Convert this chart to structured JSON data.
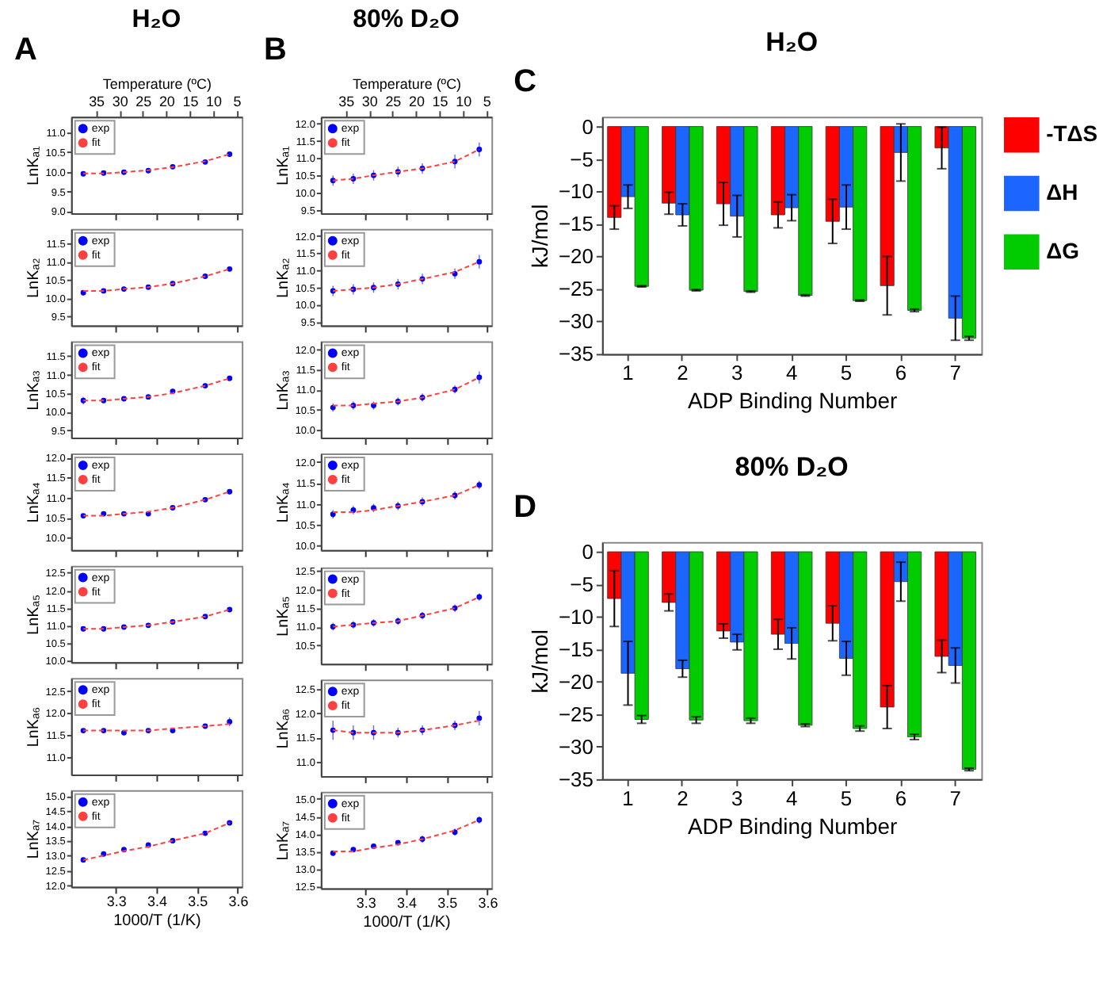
{
  "chart_data": [
    {
      "type": "scatter",
      "title": "H₂O",
      "annotations": [
        "A"
      ],
      "x": [
        3.22,
        3.27,
        3.32,
        3.38,
        3.44,
        3.52,
        3.58
      ],
      "xlim": [
        3.19,
        3.61
      ],
      "xticks": [
        3.3,
        3.4,
        3.5,
        3.6
      ],
      "x2label": "Temperature (ºC)",
      "x2lim": [
        40.3,
        3.9
      ],
      "x2ticks": [
        35,
        30,
        25,
        20,
        15,
        10,
        5
      ],
      "ylim": [
        8.95,
        11.4
      ],
      "yticks": [
        {
          "value": 9,
          "label": "9.0"
        },
        9.5,
        {
          "value": 10,
          "label": "10.0"
        },
        10.5,
        {
          "value": 11,
          "label": "11.0"
        }
      ],
      "ylabel": "LnKₐ₁",
      "legend": "top left",
      "tick_labels": "y",
      "series": [
        {
          "name": "exp",
          "type": "scatter",
          "marker": "circle",
          "color": "#0000ff",
          "values": [
            9.95,
            9.97,
            9.99,
            10.03,
            10.13,
            10.25,
            10.45
          ]
        },
        {
          "name": "fit",
          "type": "line",
          "line_style": "dashed",
          "color": "#ff4040",
          "values": [
            9.96,
            9.96,
            9.99,
            10.04,
            10.12,
            10.27,
            10.45
          ]
        }
      ]
    },
    {
      "type": "scatter",
      "x": [
        3.22,
        3.27,
        3.32,
        3.38,
        3.44,
        3.52,
        3.58
      ],
      "xlim": [
        3.19,
        3.61
      ],
      "xticks": [
        3.3,
        3.4,
        3.5,
        3.6
      ],
      "ylim": [
        9.25,
        11.9
      ],
      "yticks": [
        9.5,
        {
          "value": 10,
          "label": "10.0"
        },
        10.5,
        {
          "value": 11,
          "label": "11.0"
        },
        11.5
      ],
      "ylabel": "LnKₐ₂",
      "legend": "top left",
      "tick_labels": "y",
      "series": [
        {
          "name": "exp",
          "type": "scatter",
          "marker": "circle",
          "color": "#0000ff",
          "values": [
            10.15,
            10.2,
            10.25,
            10.3,
            10.4,
            10.6,
            10.8
          ]
        },
        {
          "name": "fit",
          "type": "line",
          "line_style": "dashed",
          "color": "#ff4040",
          "values": [
            10.2,
            10.2,
            10.25,
            10.3,
            10.4,
            10.6,
            10.8
          ]
        }
      ]
    },
    {
      "type": "scatter",
      "x": [
        3.22,
        3.27,
        3.32,
        3.38,
        3.44,
        3.52,
        3.58
      ],
      "xlim": [
        3.19,
        3.61
      ],
      "xticks": [
        3.3,
        3.4,
        3.5,
        3.6
      ],
      "ylim": [
        9.3,
        11.9
      ],
      "yticks": [
        9.5,
        {
          "value": 10,
          "label": "10.0"
        },
        10.5,
        {
          "value": 11,
          "label": "11.0"
        },
        11.5
      ],
      "ylabel": "LnKₐ₃",
      "legend": "top left",
      "tick_labels": "y",
      "series": [
        {
          "name": "exp",
          "type": "scatter",
          "marker": "circle",
          "color": "#0000ff",
          "errors": [
            0.1,
            0.05,
            null,
            null,
            null,
            null,
            null
          ],
          "values": [
            10.3,
            10.3,
            10.35,
            10.4,
            10.55,
            10.7,
            10.9
          ]
        },
        {
          "name": "fit",
          "type": "line",
          "line_style": "dashed",
          "color": "#ff4040",
          "values": [
            10.3,
            10.3,
            10.35,
            10.4,
            10.5,
            10.7,
            10.9
          ]
        }
      ]
    },
    {
      "type": "scatter",
      "x": [
        3.22,
        3.27,
        3.32,
        3.38,
        3.44,
        3.52,
        3.58
      ],
      "xlim": [
        3.19,
        3.61
      ],
      "xticks": [
        3.3,
        3.4,
        3.5,
        3.6
      ],
      "ylim": [
        9.7,
        12.1
      ],
      "yticks": [
        {
          "value": 10,
          "label": "10.0"
        },
        10.5,
        {
          "value": 11,
          "label": "11.0"
        },
        11.5,
        {
          "value": 12,
          "label": "12.0"
        }
      ],
      "ylabel": "LnKₐ₄",
      "legend": "top left",
      "tick_labels": "y",
      "series": [
        {
          "name": "exp",
          "type": "scatter",
          "marker": "circle",
          "color": "#0000ff",
          "values": [
            10.55,
            10.6,
            10.6,
            10.6,
            10.75,
            10.95,
            11.15
          ]
        },
        {
          "name": "fit",
          "type": "line",
          "line_style": "dashed",
          "color": "#ff4040",
          "values": [
            10.55,
            10.55,
            10.6,
            10.65,
            10.75,
            10.95,
            11.15
          ]
        }
      ]
    },
    {
      "type": "scatter",
      "x": [
        3.22,
        3.27,
        3.32,
        3.38,
        3.44,
        3.52,
        3.58
      ],
      "xlim": [
        3.19,
        3.61
      ],
      "xticks": [
        3.3,
        3.4,
        3.5,
        3.6
      ],
      "ylim": [
        9.95,
        12.7
      ],
      "yticks": [
        {
          "value": 10,
          "label": "10.0"
        },
        10.5,
        {
          "value": 11,
          "label": "11.0"
        },
        11.5,
        {
          "value": 12,
          "label": "12.0"
        },
        12.5
      ],
      "ylabel": "LnKₐ₅",
      "legend": "top left",
      "tick_labels": "y",
      "series": [
        {
          "name": "exp",
          "type": "scatter",
          "marker": "circle",
          "color": "#0000ff",
          "values": [
            10.9,
            10.9,
            10.95,
            11.0,
            11.1,
            11.25,
            11.45
          ]
        },
        {
          "name": "fit",
          "type": "line",
          "line_style": "dashed",
          "color": "#ff4040",
          "values": [
            10.9,
            10.9,
            10.95,
            11.0,
            11.1,
            11.25,
            11.45
          ]
        }
      ]
    },
    {
      "type": "scatter",
      "x": [
        3.22,
        3.27,
        3.32,
        3.38,
        3.44,
        3.52,
        3.58
      ],
      "xlim": [
        3.19,
        3.61
      ],
      "xticks": [
        3.3,
        3.4,
        3.5,
        3.6
      ],
      "ylim": [
        10.6,
        12.8
      ],
      "yticks": [
        {
          "value": 11,
          "label": "11.0"
        },
        11.5,
        {
          "value": 12,
          "label": "12.0"
        },
        12.5
      ],
      "ylabel": "LnKₐ₆",
      "legend": "top left",
      "tick_labels": "y",
      "series": [
        {
          "name": "exp",
          "type": "scatter",
          "marker": "circle",
          "color": "#0000ff",
          "errors": [
            null,
            null,
            null,
            null,
            null,
            null,
            0.1
          ],
          "values": [
            11.6,
            11.6,
            11.55,
            11.6,
            11.6,
            11.7,
            11.8
          ]
        },
        {
          "name": "fit",
          "type": "line",
          "line_style": "dashed",
          "color": "#ff4040",
          "values": [
            11.6,
            11.6,
            11.6,
            11.6,
            11.65,
            11.7,
            11.75
          ]
        }
      ]
    },
    {
      "type": "scatter",
      "x": [
        3.22,
        3.27,
        3.32,
        3.38,
        3.44,
        3.52,
        3.58
      ],
      "xlim": [
        3.19,
        3.61
      ],
      "xticks": [
        3.3,
        3.4,
        3.5,
        3.6
      ],
      "xlabel": "1000/T (1/K)",
      "ylim": [
        11.95,
        15.2
      ],
      "yticks": [
        {
          "value": 12,
          "label": "12.0"
        },
        12.5,
        {
          "value": 13,
          "label": "13.0"
        },
        13.5,
        {
          "value": 14,
          "label": "14.0"
        },
        14.5,
        {
          "value": 15,
          "label": "15.0"
        }
      ],
      "ylabel": "LnKₐ₇",
      "legend": "top left",
      "series": [
        {
          "name": "exp",
          "type": "scatter",
          "marker": "circle",
          "color": "#0000ff",
          "values": [
            12.85,
            13.05,
            13.2,
            13.35,
            13.5,
            13.75,
            14.1
          ]
        },
        {
          "name": "fit",
          "type": "line",
          "line_style": "dashed",
          "color": "#ff4040",
          "values": [
            12.85,
            13.0,
            13.15,
            13.3,
            13.5,
            13.75,
            14.1
          ]
        }
      ]
    },
    {
      "type": "scatter",
      "title": "80% D₂O",
      "annotations": [
        "B"
      ],
      "x": [
        3.22,
        3.27,
        3.32,
        3.38,
        3.44,
        3.52,
        3.58
      ],
      "xlim": [
        3.19,
        3.61
      ],
      "xticks": [
        3.3,
        3.4,
        3.5,
        3.6
      ],
      "x2label": "Temperature (ºC)",
      "x2lim": [
        40.3,
        3.9
      ],
      "x2ticks": [
        35,
        30,
        25,
        20,
        15,
        10,
        5
      ],
      "ylim": [
        9.4,
        12.2
      ],
      "yticks": [
        9.5,
        {
          "value": 10,
          "label": "10.0"
        },
        10.5,
        {
          "value": 11,
          "label": "11.0"
        },
        11.5,
        {
          "value": 12,
          "label": "12.0"
        }
      ],
      "ylabel": "LnKₐ₁",
      "legend": "top left",
      "tick_labels": "y",
      "series": [
        {
          "name": "exp",
          "type": "scatter",
          "marker": "circle",
          "color": "#0000ff",
          "errors": [
            0.15,
            0.15,
            0.15,
            0.15,
            0.15,
            0.2,
            0.2
          ],
          "values": [
            10.35,
            10.4,
            10.5,
            10.6,
            10.7,
            10.9,
            11.25
          ]
        },
        {
          "name": "fit",
          "type": "line",
          "line_style": "dashed",
          "color": "#ff4040",
          "values": [
            10.35,
            10.4,
            10.5,
            10.6,
            10.7,
            10.9,
            11.25
          ]
        }
      ]
    },
    {
      "type": "scatter",
      "x": [
        3.22,
        3.27,
        3.32,
        3.38,
        3.44,
        3.52,
        3.58
      ],
      "xlim": [
        3.19,
        3.61
      ],
      "xticks": [
        3.3,
        3.4,
        3.5,
        3.6
      ],
      "ylim": [
        9.4,
        12.2
      ],
      "yticks": [
        9.5,
        {
          "value": 10,
          "label": "10.0"
        },
        10.5,
        {
          "value": 11,
          "label": "11.0"
        },
        11.5,
        {
          "value": 12,
          "label": "12.0"
        }
      ],
      "ylabel": "LnKₐ₂",
      "legend": "top left",
      "tick_labels": "y",
      "series": [
        {
          "name": "exp",
          "type": "scatter",
          "marker": "circle",
          "color": "#0000ff",
          "errors": [
            0.15,
            0.15,
            0.15,
            0.15,
            0.15,
            0.15,
            0.2
          ],
          "values": [
            10.4,
            10.45,
            10.5,
            10.6,
            10.75,
            10.9,
            11.25
          ]
        },
        {
          "name": "fit",
          "type": "line",
          "line_style": "dashed",
          "color": "#ff4040",
          "values": [
            10.4,
            10.45,
            10.5,
            10.6,
            10.75,
            10.95,
            11.25
          ]
        }
      ]
    },
    {
      "type": "scatter",
      "x": [
        3.22,
        3.27,
        3.32,
        3.38,
        3.44,
        3.52,
        3.58
      ],
      "xlim": [
        3.19,
        3.61
      ],
      "xticks": [
        3.3,
        3.4,
        3.5,
        3.6
      ],
      "ylim": [
        9.8,
        12.2
      ],
      "yticks": [
        {
          "value": 10,
          "label": "10.0"
        },
        10.5,
        {
          "value": 11,
          "label": "11.0"
        },
        11.5,
        {
          "value": 12,
          "label": "12.0"
        }
      ],
      "ylabel": "LnKₐ₃",
      "legend": "top left",
      "tick_labels": "y",
      "series": [
        {
          "name": "exp",
          "type": "scatter",
          "marker": "circle",
          "color": "#0000ff",
          "errors": [
            0.1,
            0.1,
            0.1,
            0.1,
            0.1,
            0.1,
            0.15
          ],
          "values": [
            10.55,
            10.6,
            10.6,
            10.7,
            10.8,
            11.0,
            11.3
          ]
        },
        {
          "name": "fit",
          "type": "line",
          "line_style": "dashed",
          "color": "#ff4040",
          "values": [
            10.6,
            10.6,
            10.65,
            10.7,
            10.8,
            11.0,
            11.3
          ]
        }
      ]
    },
    {
      "type": "scatter",
      "x": [
        3.22,
        3.27,
        3.32,
        3.38,
        3.44,
        3.52,
        3.58
      ],
      "xlim": [
        3.19,
        3.61
      ],
      "xticks": [
        3.3,
        3.4,
        3.5,
        3.6
      ],
      "ylim": [
        9.9,
        12.2
      ],
      "yticks": [
        {
          "value": 10,
          "label": "10.0"
        },
        10.5,
        {
          "value": 11,
          "label": "11.0"
        },
        11.5,
        {
          "value": 12,
          "label": "12.0"
        }
      ],
      "ylabel": "LnKₐ₄",
      "legend": "top left",
      "tick_labels": "y",
      "series": [
        {
          "name": "exp",
          "type": "scatter",
          "marker": "circle",
          "color": "#0000ff",
          "errors": [
            0.1,
            0.1,
            0.1,
            0.1,
            0.1,
            0.1,
            0.1
          ],
          "values": [
            10.75,
            10.85,
            10.9,
            10.95,
            11.05,
            11.2,
            11.45
          ]
        },
        {
          "name": "fit",
          "type": "line",
          "line_style": "dashed",
          "color": "#ff4040",
          "values": [
            10.8,
            10.8,
            10.85,
            10.95,
            11.05,
            11.2,
            11.45
          ]
        }
      ]
    },
    {
      "type": "scatter",
      "x": [
        3.22,
        3.27,
        3.32,
        3.38,
        3.44,
        3.52,
        3.58
      ],
      "xlim": [
        3.19,
        3.61
      ],
      "xticks": [
        3.3,
        3.4,
        3.5,
        3.6
      ],
      "ylim": [
        10.0,
        12.6
      ],
      "yticks": [
        10.5,
        {
          "value": 11,
          "label": "11.0"
        },
        11.5,
        {
          "value": 12,
          "label": "12.0"
        },
        12.5
      ],
      "ylabel": "LnKₐ₅",
      "legend": "top left",
      "tick_labels": "y",
      "series": [
        {
          "name": "exp",
          "type": "scatter",
          "marker": "circle",
          "color": "#0000ff",
          "errors": [
            0.1,
            0.1,
            0.1,
            0.1,
            0.1,
            0.1,
            0.1
          ],
          "values": [
            11.0,
            11.05,
            11.1,
            11.15,
            11.3,
            11.5,
            11.8
          ]
        },
        {
          "name": "fit",
          "type": "line",
          "line_style": "dashed",
          "color": "#ff4040",
          "values": [
            11.0,
            11.05,
            11.1,
            11.15,
            11.3,
            11.5,
            11.8
          ]
        }
      ]
    },
    {
      "type": "scatter",
      "x": [
        3.22,
        3.27,
        3.32,
        3.38,
        3.44,
        3.52,
        3.58
      ],
      "xlim": [
        3.19,
        3.61
      ],
      "xticks": [
        3.3,
        3.4,
        3.5,
        3.6
      ],
      "ylim": [
        10.7,
        12.7
      ],
      "yticks": [
        {
          "value": 11,
          "label": "11.0"
        },
        11.5,
        {
          "value": 12,
          "label": "12.0"
        },
        12.5
      ],
      "ylabel": "LnKₐ₆",
      "legend": "top left",
      "tick_labels": "y",
      "series": [
        {
          "name": "exp",
          "type": "scatter",
          "marker": "circle",
          "color": "#0000ff",
          "errors": [
            0.2,
            0.15,
            0.15,
            0.1,
            0.1,
            0.1,
            0.15
          ],
          "values": [
            11.65,
            11.6,
            11.6,
            11.6,
            11.65,
            11.75,
            11.9
          ]
        },
        {
          "name": "fit",
          "type": "line",
          "line_style": "dashed",
          "color": "#ff4040",
          "values": [
            11.65,
            11.6,
            11.6,
            11.6,
            11.65,
            11.75,
            11.85
          ]
        }
      ]
    },
    {
      "type": "scatter",
      "x": [
        3.22,
        3.27,
        3.32,
        3.38,
        3.44,
        3.52,
        3.58
      ],
      "xlim": [
        3.19,
        3.61
      ],
      "xticks": [
        3.3,
        3.4,
        3.5,
        3.6
      ],
      "xlabel": "1000/T (1/K)",
      "ylim": [
        12.45,
        15.2
      ],
      "yticks": [
        12.5,
        {
          "value": 13,
          "label": "13.0"
        },
        13.5,
        {
          "value": 14,
          "label": "14.0"
        },
        14.5,
        {
          "value": 15,
          "label": "15.0"
        }
      ],
      "ylabel": "LnKₐ₇",
      "legend": "top left",
      "series": [
        {
          "name": "exp",
          "type": "scatter",
          "marker": "circle",
          "color": "#0000ff",
          "errors": [
            0.05,
            0.05,
            0.05,
            0.05,
            0.1,
            0.1,
            0.1
          ],
          "values": [
            13.45,
            13.55,
            13.65,
            13.75,
            13.85,
            14.05,
            14.4
          ]
        },
        {
          "name": "fit",
          "type": "line",
          "line_style": "dashed",
          "color": "#ff4040",
          "values": [
            13.5,
            13.5,
            13.6,
            13.7,
            13.85,
            14.1,
            14.4
          ]
        }
      ]
    },
    {
      "type": "bar",
      "title": "H₂O",
      "annotations": [
        "C"
      ],
      "categories": [
        "1",
        "2",
        "3",
        "4",
        "5",
        "6",
        "7"
      ],
      "xlabel": "ADP Binding Number",
      "ylabel": "kJ/mol",
      "ylim": [
        -35,
        1.5
      ],
      "yticks": [
        0,
        -5,
        -10,
        -15,
        -20,
        -25,
        -30,
        -35
      ],
      "legend": "right",
      "series": [
        {
          "name": "-TΔS",
          "color": "#ff0000",
          "values": [
            -14.0,
            -11.8,
            -11.9,
            -13.6,
            -14.6,
            -24.5,
            -3.3
          ],
          "errors": [
            1.8,
            1.7,
            3.3,
            2.0,
            3.4,
            4.5,
            3.2
          ]
        },
        {
          "name": "ΔH",
          "color": "#1a66ff",
          "values": [
            -10.8,
            -13.6,
            -13.8,
            -12.5,
            -12.4,
            -4.0,
            -29.5
          ],
          "errors": [
            1.8,
            1.7,
            3.2,
            2.0,
            3.4,
            4.4,
            3.4
          ]
        },
        {
          "name": "ΔG",
          "color": "#00cc00",
          "values": [
            -24.6,
            -25.2,
            -25.4,
            -26.0,
            -26.8,
            -28.3,
            -32.6
          ],
          "errors": [
            0.1,
            0.1,
            0.1,
            0.1,
            0.1,
            0.2,
            0.3
          ]
        }
      ]
    },
    {
      "type": "bar",
      "title": "80% D₂O",
      "annotations": [
        "D"
      ],
      "categories": [
        "1",
        "2",
        "3",
        "4",
        "5",
        "6",
        "7"
      ],
      "xlabel": "ADP Binding Number",
      "ylabel": "kJ/mol",
      "ylim": [
        -35,
        1.5
      ],
      "yticks": [
        0,
        -5,
        -10,
        -15,
        -20,
        -25,
        -30,
        -35
      ],
      "series": [
        {
          "name": "-TΔS",
          "color": "#ff0000",
          "values": [
            -7.2,
            -7.8,
            -12.2,
            -12.7,
            -11.0,
            -23.9,
            -16.1
          ],
          "errors": [
            4.3,
            1.3,
            1.1,
            2.3,
            2.7,
            3.3,
            2.5
          ]
        },
        {
          "name": "ΔH",
          "color": "#1a66ff",
          "values": [
            -18.7,
            -18.0,
            -13.9,
            -14.1,
            -16.4,
            -4.6,
            -17.5
          ],
          "errors": [
            4.9,
            1.3,
            1.2,
            2.4,
            2.6,
            3.0,
            2.7
          ]
        },
        {
          "name": "ΔG",
          "color": "#00cc00",
          "values": [
            -25.8,
            -25.9,
            -26.0,
            -26.7,
            -27.2,
            -28.5,
            -33.5
          ],
          "errors": [
            0.6,
            0.5,
            0.4,
            0.2,
            0.4,
            0.4,
            0.2
          ]
        }
      ]
    }
  ]
}
